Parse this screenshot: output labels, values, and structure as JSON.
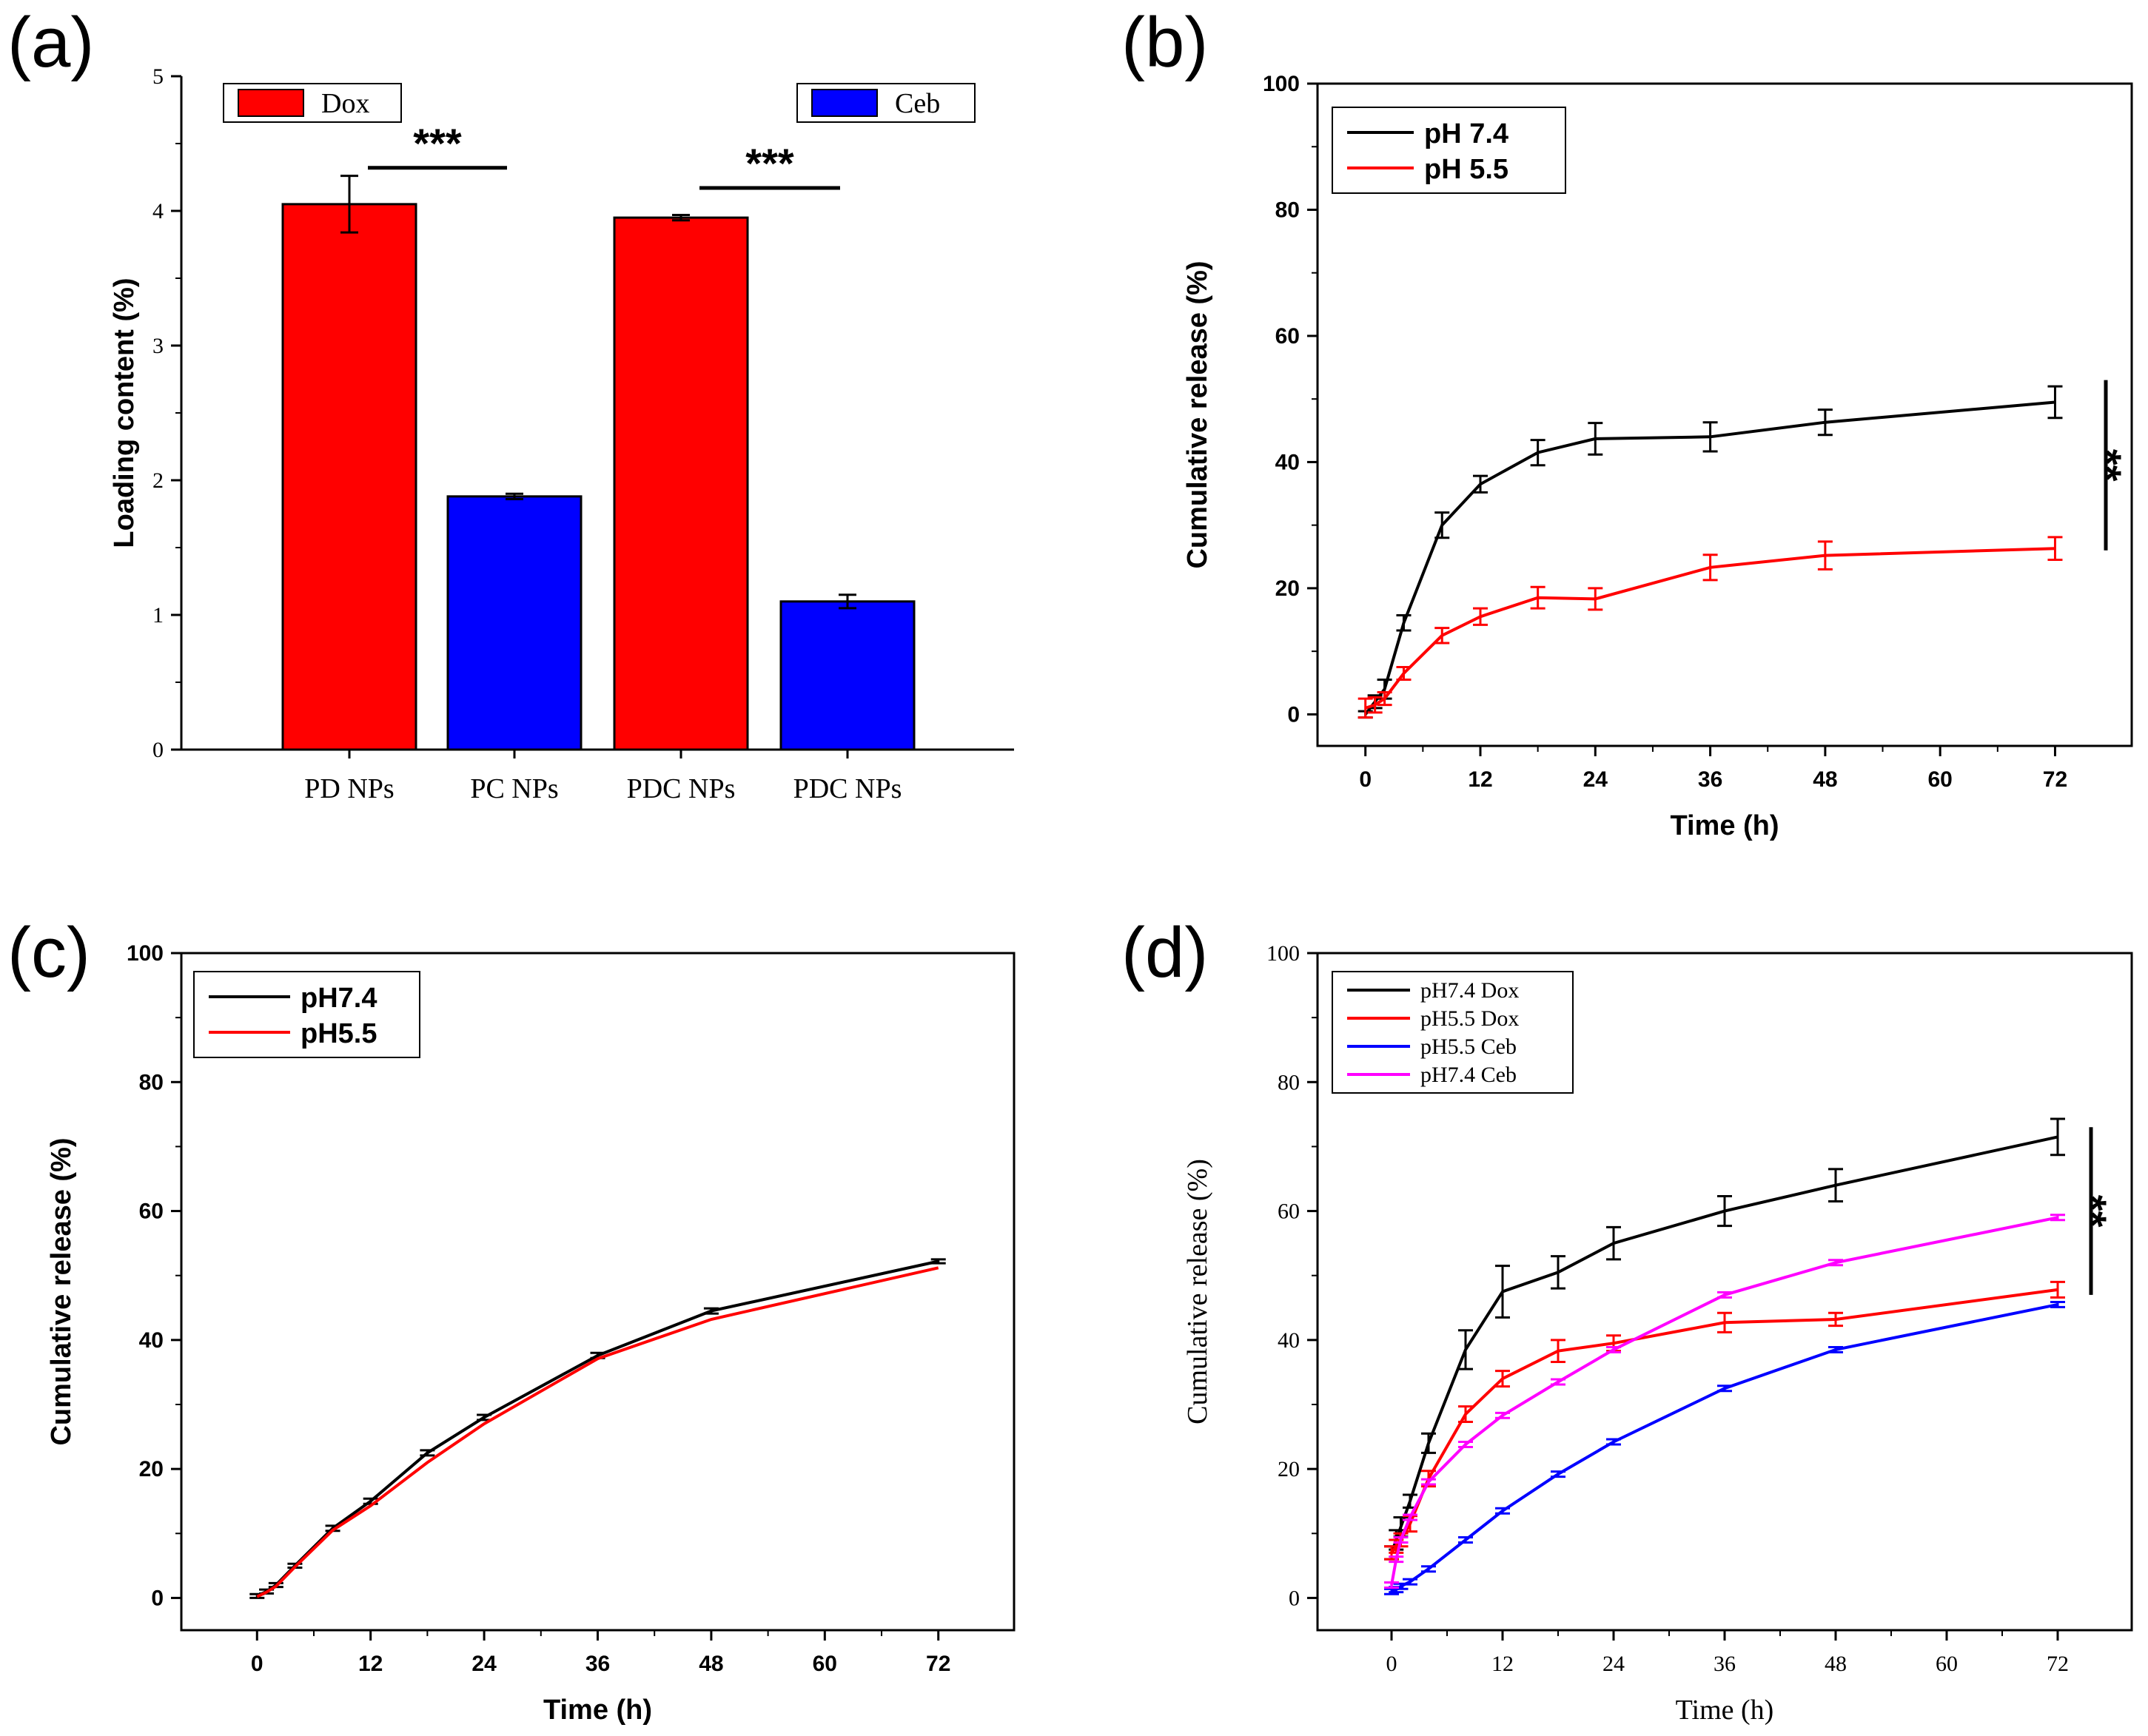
{
  "panels": {
    "a": "(a)",
    "b": "(b)",
    "c": "(c)",
    "d": "(d)"
  },
  "chart_data": [
    {
      "id": "a",
      "type": "bar",
      "title": "",
      "xlabel": "",
      "ylabel": "Loading content (%)",
      "ylim": [
        0,
        5
      ],
      "yticks": [
        "0",
        "1",
        "2",
        "3",
        "4",
        "5"
      ],
      "categories": [
        "PD NPs",
        "PC NPs",
        "PDC NPs",
        "PDC NPs"
      ],
      "values": [
        4.05,
        1.88,
        3.95,
        1.1
      ],
      "errors": [
        0.21,
        0.02,
        0.02,
        0.05
      ],
      "colors": [
        "#ff0000",
        "#0000ff",
        "#ff0000",
        "#0000ff"
      ],
      "legend": [
        {
          "name": "Dox",
          "color": "#ff0000",
          "position": "top-left"
        },
        {
          "name": "Ceb",
          "color": "#0000ff",
          "position": "top-right"
        }
      ],
      "annotations": [
        {
          "text": "***",
          "between": [
            0,
            1
          ],
          "y": 4.32
        },
        {
          "text": "***",
          "between": [
            2,
            3
          ],
          "y": 4.17
        }
      ]
    },
    {
      "id": "b",
      "type": "line",
      "xlabel": "Time (h)",
      "ylabel": "Cumulative release (%)",
      "xlim": [
        -5,
        80
      ],
      "ylim": [
        -5,
        100
      ],
      "xticks": [
        "0",
        "12",
        "24",
        "36",
        "48",
        "60",
        "72"
      ],
      "yticks": [
        "0",
        "20",
        "40",
        "60",
        "80",
        "100"
      ],
      "legend_position": "top-left",
      "series": [
        {
          "name": "pH 7.4",
          "color": "#000000",
          "x": [
            0,
            1,
            2,
            4,
            8,
            12,
            18,
            24,
            36,
            48,
            72
          ],
          "y": [
            0,
            2,
            4,
            14.5,
            30,
            36.5,
            41.5,
            43.7,
            44,
            46.3,
            49.5
          ],
          "err": [
            0.5,
            1,
            1.5,
            1.2,
            2,
            1.3,
            2,
            2.5,
            2.3,
            2,
            2.5
          ]
        },
        {
          "name": "pH 5.5",
          "color": "#ff0000",
          "x": [
            0,
            1,
            2,
            4,
            8,
            12,
            18,
            24,
            36,
            48,
            72
          ],
          "y": [
            1,
            1.5,
            2.5,
            6.5,
            12.5,
            15.5,
            18.5,
            18.3,
            23.3,
            25.2,
            26.3
          ],
          "err": [
            1.5,
            1.2,
            1,
            1,
            1.2,
            1.3,
            1.7,
            1.7,
            2,
            2.2,
            1.8
          ]
        }
      ],
      "annotations": [
        {
          "text": "**",
          "y_range": [
            26,
            53
          ]
        }
      ]
    },
    {
      "id": "c",
      "type": "line",
      "xlabel": "Time (h)",
      "ylabel": "Cumulative release (%)",
      "xlim": [
        -8,
        80
      ],
      "ylim": [
        -5,
        100
      ],
      "xticks": [
        "0",
        "12",
        "24",
        "36",
        "48",
        "60",
        "72"
      ],
      "yticks": [
        "0",
        "20",
        "40",
        "60",
        "80",
        "100"
      ],
      "legend_position": "top-left",
      "series": [
        {
          "name": "pH7.4",
          "color": "#000000",
          "x": [
            0,
            1,
            2,
            4,
            8,
            12,
            18,
            24,
            36,
            48,
            72
          ],
          "y": [
            0.3,
            1,
            2,
            5,
            10.8,
            15,
            22.5,
            28,
            37.6,
            44.5,
            52.2
          ],
          "err": [
            0.3,
            0.3,
            0.3,
            0.3,
            0.4,
            0.4,
            0.4,
            0.4,
            0.4,
            0.4,
            0.3
          ]
        },
        {
          "name": "pH5.5",
          "color": "#ff0000",
          "x": [
            0,
            1,
            2,
            4,
            8,
            12,
            18,
            24,
            36,
            48,
            72
          ],
          "y": [
            0.2,
            0.9,
            1.8,
            4.8,
            10.5,
            14.3,
            21,
            27,
            37.1,
            43.2,
            51.2
          ],
          "err": [
            0,
            0,
            0,
            0,
            0,
            0,
            0,
            0,
            0,
            0,
            0
          ]
        }
      ]
    },
    {
      "id": "d",
      "type": "line",
      "xlabel": "Time (h)",
      "ylabel": "Cumulative release (%)",
      "xlim": [
        -8,
        80
      ],
      "ylim": [
        -5,
        100
      ],
      "xticks": [
        "0",
        "12",
        "24",
        "36",
        "48",
        "60",
        "72"
      ],
      "yticks": [
        "0",
        "20",
        "40",
        "60",
        "80",
        "100"
      ],
      "legend_position": "top-left",
      "series": [
        {
          "name": "pH7.4 Dox",
          "color": "#000000",
          "x": [
            0,
            0.5,
            1,
            2,
            4,
            8,
            12,
            18,
            24,
            36,
            48,
            72
          ],
          "y": [
            7,
            9,
            11,
            15,
            24,
            38.5,
            47.5,
            50.5,
            55,
            60,
            64,
            71.5
          ],
          "err": [
            1,
            1.5,
            1.5,
            1,
            1.5,
            3,
            4,
            2.5,
            2.5,
            2.3,
            2.5,
            2.8
          ]
        },
        {
          "name": "pH5.5 Dox",
          "color": "#ff0000",
          "x": [
            0,
            0.5,
            1,
            2,
            4,
            8,
            12,
            18,
            24,
            36,
            48,
            72
          ],
          "y": [
            7,
            8,
            9,
            11.5,
            18.5,
            28.5,
            34,
            38.3,
            39.5,
            42.7,
            43.2,
            47.8
          ],
          "err": [
            1,
            1,
            1,
            1.2,
            1.2,
            1.2,
            1.2,
            1.7,
            1.2,
            1.5,
            1,
            1.2
          ]
        },
        {
          "name": "pH5.5 Ceb",
          "color": "#0000ff",
          "x": [
            0,
            0.5,
            1,
            2,
            4,
            8,
            12,
            18,
            24,
            36,
            48,
            72
          ],
          "y": [
            1,
            1.3,
            1.8,
            2.5,
            4.5,
            9,
            13.5,
            19.2,
            24.2,
            32.5,
            38.5,
            45.5
          ],
          "err": [
            0.4,
            0.4,
            0.4,
            0.4,
            0.4,
            0.4,
            0.4,
            0.4,
            0.4,
            0.4,
            0.4,
            0.4
          ]
        },
        {
          "name": "pH7.4 Ceb",
          "color": "#ff00ff",
          "x": [
            0,
            0.5,
            1,
            2,
            4,
            8,
            12,
            18,
            24,
            36,
            48,
            72
          ],
          "y": [
            2,
            6,
            9,
            12.5,
            18,
            23.8,
            28.3,
            33.5,
            38.5,
            47,
            52,
            59
          ],
          "err": [
            0.4,
            0.4,
            0.4,
            0.4,
            0.4,
            0.4,
            0.4,
            0.4,
            0.4,
            0.4,
            0.4,
            0.4
          ]
        }
      ],
      "annotations": [
        {
          "text": "**",
          "y_range": [
            47,
            73
          ]
        }
      ]
    }
  ]
}
